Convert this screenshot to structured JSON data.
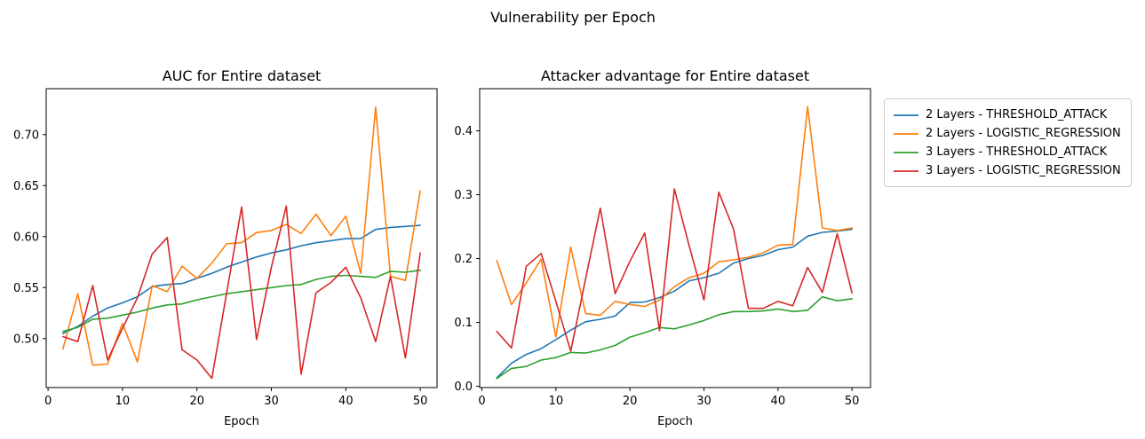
{
  "suptitle": "Vulnerability per Epoch",
  "colors": {
    "blue": "#1f77b4",
    "orange": "#ff7f0e",
    "green": "#2ca02c",
    "red": "#d62728",
    "axes_line": "#000000",
    "legend_border": "#cccccc",
    "background": "#ffffff"
  },
  "legend": {
    "entries": [
      {
        "label": "2 Layers - THRESHOLD_ATTACK",
        "color": "#1f77b4"
      },
      {
        "label": "2 Layers - LOGISTIC_REGRESSION",
        "color": "#ff7f0e"
      },
      {
        "label": "3 Layers - THRESHOLD_ATTACK",
        "color": "#2ca02c"
      },
      {
        "label": "3 Layers - LOGISTIC_REGRESSION",
        "color": "#d62728"
      }
    ],
    "position": "outside-upper-right"
  },
  "chart_data": [
    {
      "type": "line",
      "title": "AUC for Entire dataset",
      "xlabel": "Epoch",
      "ylabel": "",
      "grid": false,
      "xlim": [
        -0.25,
        52.25
      ],
      "ylim": [
        0.452,
        0.745
      ],
      "xticks": [
        0,
        10,
        20,
        30,
        40,
        50
      ],
      "xtick_labels": [
        "0",
        "10",
        "20",
        "30",
        "40",
        "50"
      ],
      "yticks": [
        0.5,
        0.55,
        0.6,
        0.65,
        0.7
      ],
      "ytick_labels": [
        "0.50",
        "0.55",
        "0.60",
        "0.65",
        "0.70"
      ],
      "x": [
        2,
        4,
        6,
        8,
        10,
        12,
        14,
        16,
        18,
        20,
        22,
        24,
        26,
        28,
        30,
        32,
        34,
        36,
        38,
        40,
        42,
        44,
        46,
        48,
        50
      ],
      "series": [
        {
          "name": "2 Layers - THRESHOLD_ATTACK",
          "color": "#1f77b4",
          "values": [
            0.505,
            0.512,
            0.522,
            0.53,
            0.535,
            0.541,
            0.551,
            0.553,
            0.554,
            0.559,
            0.564,
            0.57,
            0.575,
            0.58,
            0.584,
            0.587,
            0.591,
            0.594,
            0.596,
            0.598,
            0.598,
            0.607,
            0.609,
            0.61,
            0.611
          ]
        },
        {
          "name": "2 Layers - LOGISTIC_REGRESSION",
          "color": "#ff7f0e",
          "values": [
            0.49,
            0.544,
            0.474,
            0.475,
            0.515,
            0.477,
            0.552,
            0.546,
            0.571,
            0.559,
            0.574,
            0.593,
            0.594,
            0.604,
            0.606,
            0.612,
            0.603,
            0.622,
            0.601,
            0.62,
            0.564,
            0.727,
            0.561,
            0.557,
            0.645
          ]
        },
        {
          "name": "3 Layers - THRESHOLD_ATTACK",
          "color": "#2ca02c",
          "values": [
            0.507,
            0.511,
            0.519,
            0.52,
            0.523,
            0.526,
            0.53,
            0.533,
            0.534,
            0.538,
            0.541,
            0.544,
            0.546,
            0.548,
            0.55,
            0.552,
            0.553,
            0.558,
            0.561,
            0.562,
            0.561,
            0.56,
            0.566,
            0.565,
            0.567
          ]
        },
        {
          "name": "3 Layers - LOGISTIC_REGRESSION",
          "color": "#d62728",
          "values": [
            0.502,
            0.497,
            0.552,
            0.479,
            0.51,
            0.54,
            0.583,
            0.599,
            0.489,
            0.479,
            0.461,
            0.545,
            0.629,
            0.499,
            0.57,
            0.63,
            0.465,
            0.545,
            0.555,
            0.57,
            0.54,
            0.497,
            0.561,
            0.481,
            0.584
          ]
        }
      ]
    },
    {
      "type": "line",
      "title": "Attacker advantage for Entire dataset",
      "xlabel": "Epoch",
      "ylabel": "",
      "grid": false,
      "xlim": [
        -0.3,
        52.5
      ],
      "ylim": [
        -0.002,
        0.466
      ],
      "xticks": [
        0,
        10,
        20,
        30,
        40,
        50
      ],
      "xtick_labels": [
        "0",
        "10",
        "20",
        "30",
        "40",
        "50"
      ],
      "yticks": [
        0.0,
        0.1,
        0.2,
        0.3,
        0.4
      ],
      "ytick_labels": [
        "0.0",
        "0.1",
        "0.2",
        "0.3",
        "0.4"
      ],
      "x": [
        2,
        4,
        6,
        8,
        10,
        12,
        14,
        16,
        18,
        20,
        22,
        24,
        26,
        28,
        30,
        32,
        34,
        36,
        38,
        40,
        42,
        44,
        46,
        48,
        50
      ],
      "series": [
        {
          "name": "2 Layers - THRESHOLD_ATTACK",
          "color": "#1f77b4",
          "values": [
            0.013,
            0.036,
            0.05,
            0.059,
            0.073,
            0.088,
            0.101,
            0.105,
            0.11,
            0.131,
            0.132,
            0.139,
            0.149,
            0.165,
            0.17,
            0.177,
            0.193,
            0.2,
            0.205,
            0.214,
            0.218,
            0.235,
            0.241,
            0.243,
            0.246
          ]
        },
        {
          "name": "2 Layers - LOGISTIC_REGRESSION",
          "color": "#ff7f0e",
          "values": [
            0.197,
            0.128,
            0.162,
            0.199,
            0.077,
            0.218,
            0.114,
            0.111,
            0.133,
            0.128,
            0.125,
            0.135,
            0.156,
            0.17,
            0.177,
            0.195,
            0.198,
            0.202,
            0.209,
            0.221,
            0.222,
            0.438,
            0.248,
            0.244,
            0.248
          ]
        },
        {
          "name": "3 Layers - THRESHOLD_ATTACK",
          "color": "#2ca02c",
          "values": [
            0.012,
            0.028,
            0.031,
            0.041,
            0.045,
            0.053,
            0.052,
            0.057,
            0.064,
            0.077,
            0.084,
            0.092,
            0.09,
            0.096,
            0.103,
            0.112,
            0.117,
            0.117,
            0.118,
            0.121,
            0.117,
            0.119,
            0.14,
            0.134,
            0.137
          ]
        },
        {
          "name": "3 Layers - LOGISTIC_REGRESSION",
          "color": "#d62728",
          "values": [
            0.086,
            0.06,
            0.188,
            0.208,
            0.133,
            0.055,
            0.168,
            0.279,
            0.145,
            0.196,
            0.24,
            0.087,
            0.309,
            0.22,
            0.135,
            0.304,
            0.246,
            0.122,
            0.122,
            0.133,
            0.126,
            0.186,
            0.147,
            0.239,
            0.146
          ]
        }
      ]
    }
  ]
}
